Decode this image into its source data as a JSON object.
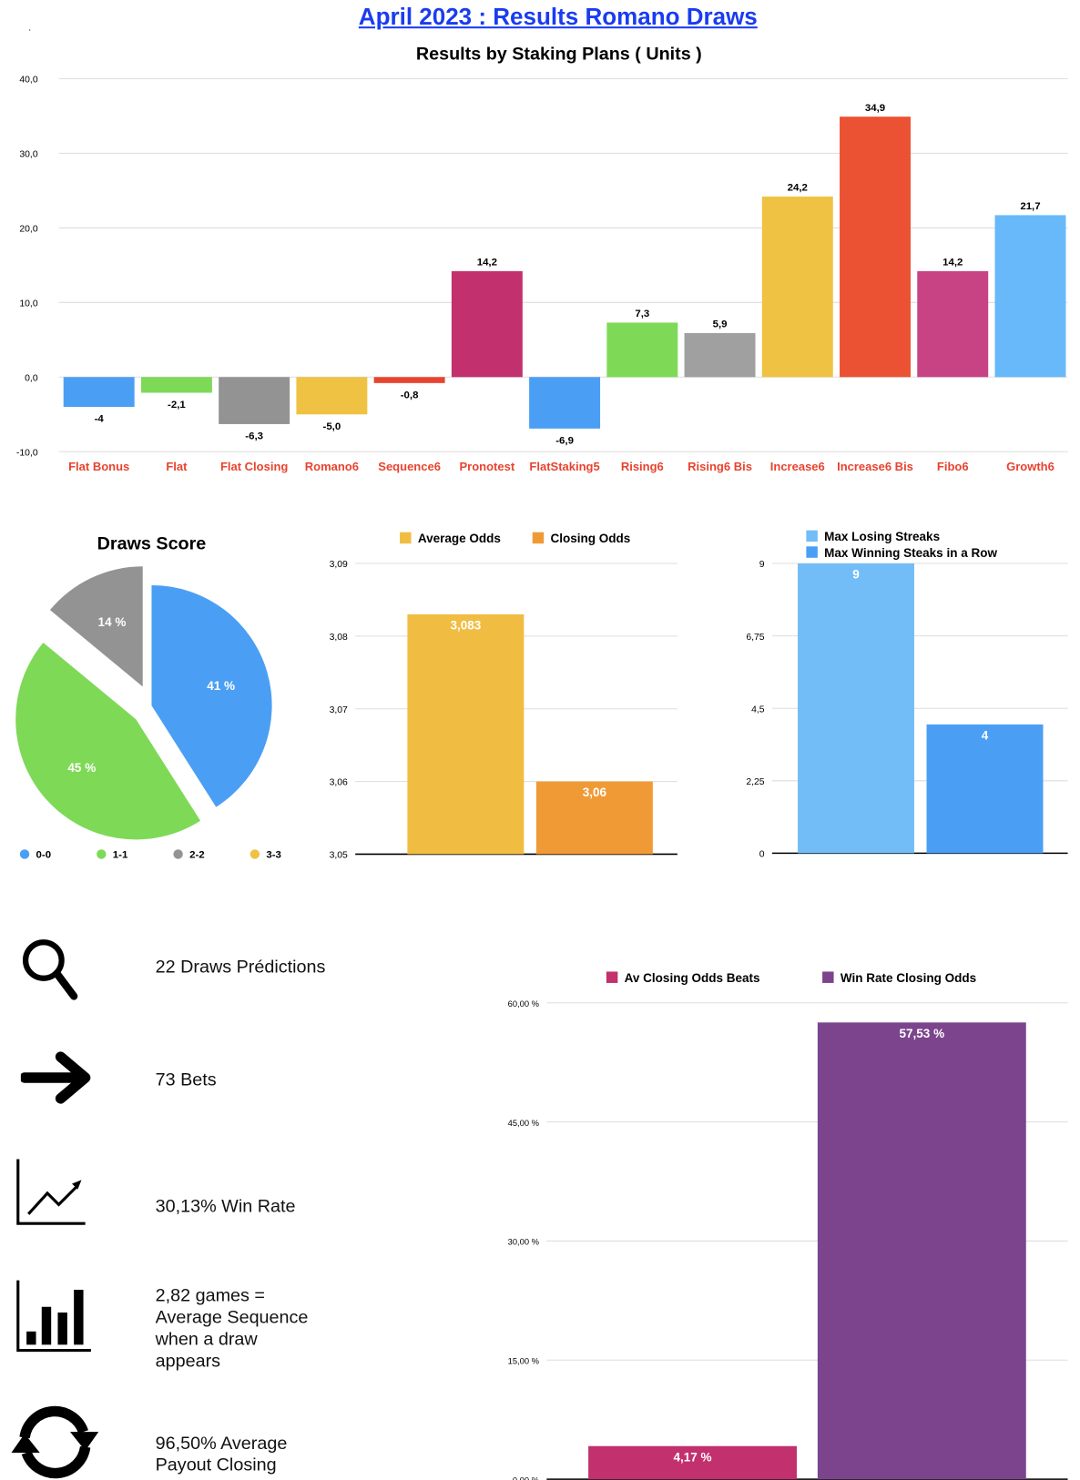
{
  "page": {
    "title": "April 2023 : Results Romano Draws",
    "dot": "."
  },
  "chart_data": [
    {
      "type": "bar",
      "title": "Results by Staking Plans ( Units )",
      "categories": [
        "Flat Bonus",
        "Flat",
        "Flat Closing",
        "Romano6",
        "Sequence6",
        "Pronotest",
        "FlatStaking5",
        "Rising6",
        "Rising6 Bis",
        "Increase6",
        "Increase6 Bis",
        "Fibo6",
        "Growth6"
      ],
      "values": [
        -4,
        -2.1,
        -6.3,
        -5.0,
        -0.8,
        14.2,
        -6.9,
        7.3,
        5.9,
        24.2,
        34.9,
        14.2,
        21.7
      ],
      "value_labels": [
        "-4",
        "-2,1",
        "-6,3",
        "-5,0",
        "-0,8",
        "14,2",
        "-6,9",
        "7,3",
        "5,9",
        "24,2",
        "34,9",
        "14,2",
        "21,7"
      ],
      "colors": [
        "#4a9ff5",
        "#7ed957",
        "#939393",
        "#f0c244",
        "#e8432f",
        "#c2306e",
        "#4a9ff5",
        "#7ed957",
        "#a0a0a0",
        "#f0c244",
        "#ea5233",
        "#c84384",
        "#68b9fa"
      ],
      "ylim": [
        -10,
        40
      ],
      "yticks": [
        -10,
        0,
        10,
        20,
        30,
        40
      ],
      "ytick_labels": [
        "-10,0",
        "0,0",
        "10,0",
        "20,0",
        "30,0",
        "40,0"
      ],
      "category_label_color": "#e8432f",
      "grid": true
    },
    {
      "type": "pie",
      "title": "Draws Score",
      "labels": [
        "0-0",
        "1-1",
        "2-2",
        "3-3"
      ],
      "values": [
        41,
        45,
        14,
        0
      ],
      "value_labels": [
        "41 %",
        "45 %",
        "14 %",
        ""
      ],
      "colors": [
        "#4a9ff5",
        "#7ed957",
        "#939393",
        "#f0c244"
      ],
      "legend": "bottom"
    },
    {
      "type": "bar",
      "series": [
        {
          "name": "Average Odds",
          "value": 3.083,
          "label": "3,083",
          "color": "#f0bd42"
        },
        {
          "name": "Closing Odds",
          "value": 3.06,
          "label": "3,06",
          "color": "#f09a36"
        }
      ],
      "ylim": [
        3.05,
        3.09
      ],
      "yticks": [
        3.05,
        3.06,
        3.07,
        3.08,
        3.09
      ],
      "ytick_labels": [
        "3,05",
        "3,06",
        "3,07",
        "3,08",
        "3,09"
      ],
      "legend": "top"
    },
    {
      "type": "bar",
      "series": [
        {
          "name": "Max Losing Streaks",
          "value": 9,
          "label": "9",
          "color": "#72bdf8"
        },
        {
          "name": "Max Winning Steaks in a Row",
          "value": 4,
          "label": "4",
          "color": "#4a9ff5"
        }
      ],
      "ylim": [
        0,
        9
      ],
      "yticks": [
        0,
        2.25,
        4.5,
        6.75,
        9
      ],
      "ytick_labels": [
        "0",
        "2,25",
        "4,5",
        "6,75",
        "9"
      ],
      "legend": "top"
    },
    {
      "type": "bar",
      "series": [
        {
          "name": "Av Closing Odds Beats",
          "value": 4.17,
          "label": "4,17 %",
          "color": "#c2306e"
        },
        {
          "name": "Win Rate Closing Odds",
          "value": 57.53,
          "label": "57,53 %",
          "color": "#7b448c"
        }
      ],
      "ylim": [
        0,
        60
      ],
      "yticks": [
        0,
        15,
        30,
        45,
        60
      ],
      "ytick_labels": [
        "0,00 %",
        "15,00 %",
        "30,00 %",
        "45,00 %",
        "60,00 %"
      ],
      "legend": "top"
    }
  ],
  "stats": [
    {
      "icon": "search-icon",
      "text": "22 Draws Prédictions"
    },
    {
      "icon": "arrow-right-icon",
      "text": "73 Bets"
    },
    {
      "icon": "trend-chart-icon",
      "text": "30,13% Win Rate"
    },
    {
      "icon": "bar-chart-icon",
      "text": "2,82 games = Average Sequence when a draw appears"
    },
    {
      "icon": "refresh-icon",
      "text": "96,50% Average Payout Closing"
    }
  ]
}
